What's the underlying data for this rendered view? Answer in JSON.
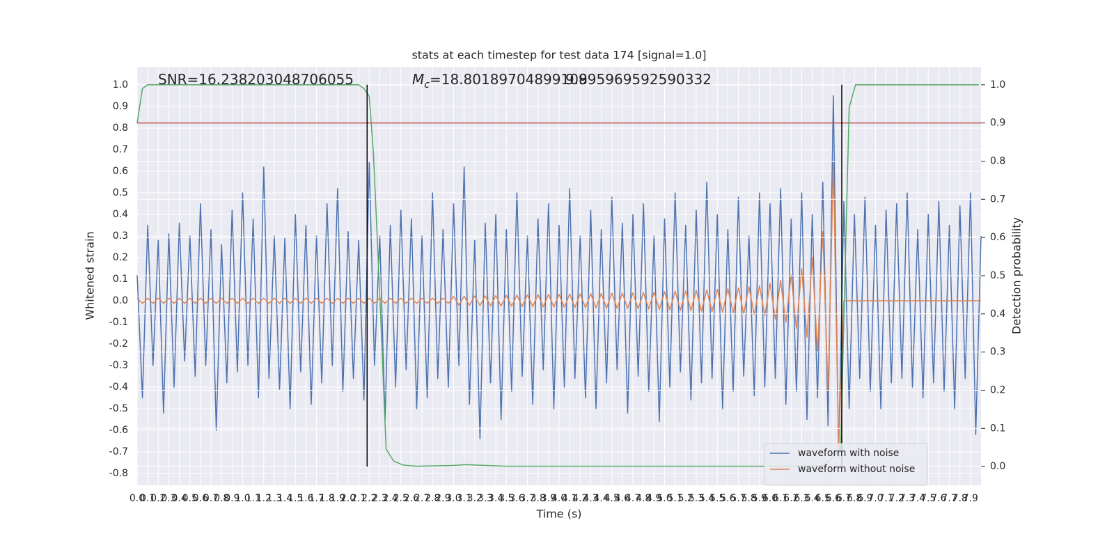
{
  "chart_data": {
    "type": "line",
    "title": "stats at each timestep for test data 174 [signal=1.0]",
    "xlabel": "Time (s)",
    "ylabel": "Whitened strain",
    "y2label": "Detection probability",
    "annotations": [
      {
        "text": "SNR=16.238203048706055"
      },
      {
        "symbol": "M",
        "subscript": "c",
        "text": "=18.80189704899109"
      },
      {
        "text": "9.895969592590332"
      }
    ],
    "xlim": [
      0,
      8
    ],
    "ylim": [
      -0.855,
      1.084
    ],
    "y2lim": [
      -0.049,
      1.047
    ],
    "xticks": [
      {
        "value": 0,
        "label": "0.0"
      },
      0.1,
      0.2,
      0.3,
      0.4,
      0.5,
      0.6,
      0.7,
      0.8,
      0.9,
      {
        "value": 1,
        "label": "1.0"
      },
      1.1,
      1.2,
      1.3,
      1.4,
      1.5,
      1.6,
      1.7,
      1.8,
      1.9,
      {
        "value": 2,
        "label": "2.0"
      },
      2.1,
      2.2,
      2.3,
      2.4,
      2.5,
      2.6,
      2.7,
      2.8,
      2.9,
      {
        "value": 3,
        "label": "3.0"
      },
      3.1,
      3.2,
      3.3,
      3.4,
      3.5,
      3.6,
      3.7,
      3.8,
      3.9,
      {
        "value": 4,
        "label": "4.0"
      },
      4.1,
      4.2,
      4.3,
      4.4,
      4.5,
      4.6,
      4.7,
      4.8,
      4.9,
      {
        "value": 5,
        "label": "5.0"
      },
      5.1,
      5.2,
      5.3,
      5.4,
      5.5,
      5.6,
      5.7,
      5.8,
      5.9,
      {
        "value": 6,
        "label": "6.0"
      },
      6.1,
      6.2,
      6.3,
      6.4,
      6.5,
      6.6,
      6.7,
      6.8,
      6.9,
      {
        "value": 7,
        "label": "7.0"
      },
      7.1,
      7.2,
      7.3,
      7.4,
      7.5,
      7.6,
      7.7,
      7.8,
      7.9
    ],
    "yticks": [
      -0.8,
      -0.7,
      -0.6,
      -0.5,
      -0.4,
      -0.3,
      -0.2,
      -0.1,
      {
        "value": 0,
        "label": "0.0"
      },
      0.1,
      0.2,
      0.3,
      0.4,
      0.5,
      0.6,
      0.7,
      0.8,
      0.9,
      {
        "value": 1,
        "label": "1.0"
      }
    ],
    "y2ticks": [
      {
        "value": 0,
        "label": "0.0"
      },
      0.1,
      0.2,
      0.3,
      0.4,
      0.5,
      0.6,
      0.7,
      0.8,
      0.9,
      {
        "value": 1,
        "label": "1.0"
      }
    ],
    "grid": true,
    "legend": "lower right",
    "x": [
      0,
      0.05,
      0.1,
      0.15,
      0.2,
      0.25,
      0.3,
      0.35,
      0.4,
      0.45,
      0.5,
      0.55,
      0.6,
      0.65,
      0.7,
      0.75,
      0.8,
      0.85,
      0.9,
      0.95,
      1,
      1.05,
      1.1,
      1.15,
      1.2,
      1.25,
      1.3,
      1.35,
      1.4,
      1.45,
      1.5,
      1.55,
      1.6,
      1.65,
      1.7,
      1.75,
      1.8,
      1.85,
      1.9,
      1.95,
      2,
      2.05,
      2.1,
      2.15,
      2.2,
      2.25,
      2.3,
      2.35,
      2.4,
      2.45,
      2.5,
      2.55,
      2.6,
      2.65,
      2.7,
      2.75,
      2.8,
      2.85,
      2.9,
      2.95,
      3,
      3.05,
      3.1,
      3.15,
      3.2,
      3.25,
      3.3,
      3.35,
      3.4,
      3.45,
      3.5,
      3.55,
      3.6,
      3.65,
      3.7,
      3.75,
      3.8,
      3.85,
      3.9,
      3.95,
      4,
      4.05,
      4.1,
      4.15,
      4.2,
      4.25,
      4.3,
      4.35,
      4.4,
      4.45,
      4.5,
      4.55,
      4.6,
      4.65,
      4.7,
      4.75,
      4.8,
      4.85,
      4.9,
      4.95,
      5,
      5.05,
      5.1,
      5.15,
      5.2,
      5.25,
      5.3,
      5.35,
      5.4,
      5.45,
      5.5,
      5.55,
      5.6,
      5.65,
      5.7,
      5.75,
      5.8,
      5.85,
      5.9,
      5.95,
      6,
      6.05,
      6.1,
      6.15,
      6.2,
      6.25,
      6.3,
      6.35,
      6.4,
      6.45,
      6.5,
      6.55,
      6.6,
      6.65,
      6.7,
      6.75,
      6.8,
      6.85,
      6.9,
      6.95,
      7,
      7.05,
      7.1,
      7.15,
      7.2,
      7.25,
      7.3,
      7.35,
      7.4,
      7.45,
      7.5,
      7.55,
      7.6,
      7.65,
      7.7,
      7.75,
      7.8,
      7.85,
      7.9,
      7.95,
      8
    ],
    "series": [
      {
        "name": "waveform with noise",
        "color": "#4c72b0",
        "values": [
          0.12,
          -0.45,
          0.35,
          -0.3,
          0.28,
          -0.52,
          0.31,
          -0.4,
          0.36,
          -0.28,
          0.3,
          -0.35,
          0.45,
          -0.3,
          0.33,
          -0.6,
          0.26,
          -0.38,
          0.42,
          -0.33,
          0.5,
          -0.3,
          0.38,
          -0.45,
          0.62,
          -0.36,
          0.3,
          -0.41,
          0.29,
          -0.5,
          0.4,
          -0.33,
          0.35,
          -0.48,
          0.3,
          -0.38,
          0.45,
          -0.3,
          0.52,
          -0.42,
          0.32,
          -0.36,
          0.28,
          -0.46,
          0.64,
          -0.3,
          0.3,
          -0.55,
          0.35,
          -0.4,
          0.42,
          -0.32,
          0.38,
          -0.5,
          0.3,
          -0.45,
          0.5,
          -0.36,
          0.33,
          -0.4,
          0.45,
          -0.3,
          0.62,
          -0.48,
          0.28,
          -0.64,
          0.36,
          -0.38,
          0.4,
          -0.55,
          0.33,
          -0.42,
          0.5,
          -0.35,
          0.3,
          -0.48,
          0.38,
          -0.32,
          0.45,
          -0.5,
          0.35,
          -0.4,
          0.52,
          -0.36,
          0.3,
          -0.45,
          0.42,
          -0.5,
          0.33,
          -0.38,
          0.48,
          -0.32,
          0.36,
          -0.52,
          0.4,
          -0.35,
          0.45,
          -0.42,
          0.3,
          -0.56,
          0.38,
          -0.4,
          0.5,
          -0.33,
          0.35,
          -0.46,
          0.42,
          -0.38,
          0.55,
          -0.36,
          0.4,
          -0.5,
          0.33,
          -0.42,
          0.48,
          -0.35,
          0.3,
          -0.44,
          0.5,
          -0.4,
          0.45,
          -0.36,
          0.52,
          -0.48,
          0.38,
          -0.42,
          0.5,
          -0.55,
          0.4,
          -0.45,
          0.55,
          -0.58,
          0.95,
          -0.72,
          0.46,
          -0.5,
          0.4,
          -0.36,
          0.48,
          -0.42,
          0.35,
          -0.5,
          0.42,
          -0.38,
          0.45,
          -0.36,
          0.5,
          -0.4,
          0.33,
          -0.45,
          0.4,
          -0.38,
          0.46,
          -0.42,
          0.35,
          -0.5,
          0.44,
          -0.36,
          0.5,
          -0.62,
          0.3
        ]
      },
      {
        "name": "waveform without noise",
        "color": "#dd8452",
        "values": [
          0.012,
          -0.012,
          0.012,
          -0.012,
          0.012,
          -0.012,
          0.012,
          -0.012,
          0.012,
          -0.012,
          0.012,
          -0.012,
          0.012,
          -0.012,
          0.012,
          -0.012,
          0.012,
          -0.012,
          0.012,
          -0.012,
          0.012,
          -0.012,
          0.012,
          -0.012,
          0.012,
          -0.012,
          0.012,
          -0.012,
          0.012,
          -0.012,
          0.012,
          -0.012,
          0.012,
          -0.012,
          0.012,
          -0.012,
          0.012,
          -0.012,
          0.012,
          -0.012,
          0.012,
          -0.012,
          0.012,
          -0.012,
          0.012,
          -0.012,
          0.012,
          -0.012,
          0.012,
          -0.012,
          0.012,
          -0.012,
          0.012,
          -0.012,
          0.012,
          -0.012,
          0.012,
          -0.012,
          0.012,
          -0.012,
          0.02,
          -0.02,
          0.021,
          -0.021,
          0.022,
          -0.022,
          0.023,
          -0.023,
          0.024,
          -0.024,
          0.025,
          -0.025,
          0.026,
          -0.026,
          0.027,
          -0.027,
          0.028,
          -0.028,
          0.029,
          -0.029,
          0.03,
          -0.03,
          0.031,
          -0.031,
          0.032,
          -0.032,
          0.033,
          -0.033,
          0.034,
          -0.034,
          0.035,
          -0.035,
          0.036,
          -0.036,
          0.037,
          -0.037,
          0.038,
          -0.038,
          0.04,
          -0.04,
          0.042,
          -0.042,
          0.044,
          -0.044,
          0.046,
          -0.046,
          0.048,
          -0.048,
          0.05,
          -0.05,
          0.053,
          -0.053,
          0.056,
          -0.056,
          0.06,
          -0.06,
          0.065,
          -0.065,
          0.07,
          -0.07,
          0.08,
          -0.085,
          0.095,
          -0.1,
          0.12,
          -0.13,
          0.15,
          -0.17,
          0.2,
          -0.24,
          0.32,
          -0.42,
          0.64,
          -0.68,
          0,
          0,
          0,
          0,
          0,
          0,
          0,
          0,
          0,
          0,
          0,
          0,
          0,
          0,
          0,
          0,
          0,
          0,
          0,
          0,
          0,
          0,
          0,
          0,
          0,
          0,
          0
        ]
      },
      {
        "color": "#55a868",
        "axis": "y2",
        "x": [
          0,
          0.05,
          0.1,
          0.2,
          0.5,
          1,
          1.5,
          2,
          2.1,
          2.15,
          2.2,
          2.24,
          2.3,
          2.36,
          2.43,
          2.52,
          2.65,
          3,
          3.11,
          3.5,
          5,
          6,
          6.5,
          6.57,
          6.67,
          6.71,
          6.75,
          6.81,
          7,
          7.5,
          7.98
        ],
        "values": [
          0.9,
          0.99,
          1,
          1,
          1,
          1,
          1,
          1,
          1,
          0.99,
          0.97,
          0.82,
          0.45,
          0.046,
          0.015,
          0.004,
          0.001,
          0.003,
          0.005,
          0.001,
          0.001,
          0.001,
          0.002,
          0.018,
          0.046,
          0.5,
          0.94,
          1,
          1,
          1,
          1
        ]
      }
    ],
    "vlines": {
      "x": [
        2.18,
        6.68
      ],
      "ymin": 0,
      "ymax": 1,
      "axis": "y2",
      "color": "#000000"
    },
    "hline": {
      "y": 0.9,
      "axis": "y2",
      "color": "#c44e52"
    }
  }
}
